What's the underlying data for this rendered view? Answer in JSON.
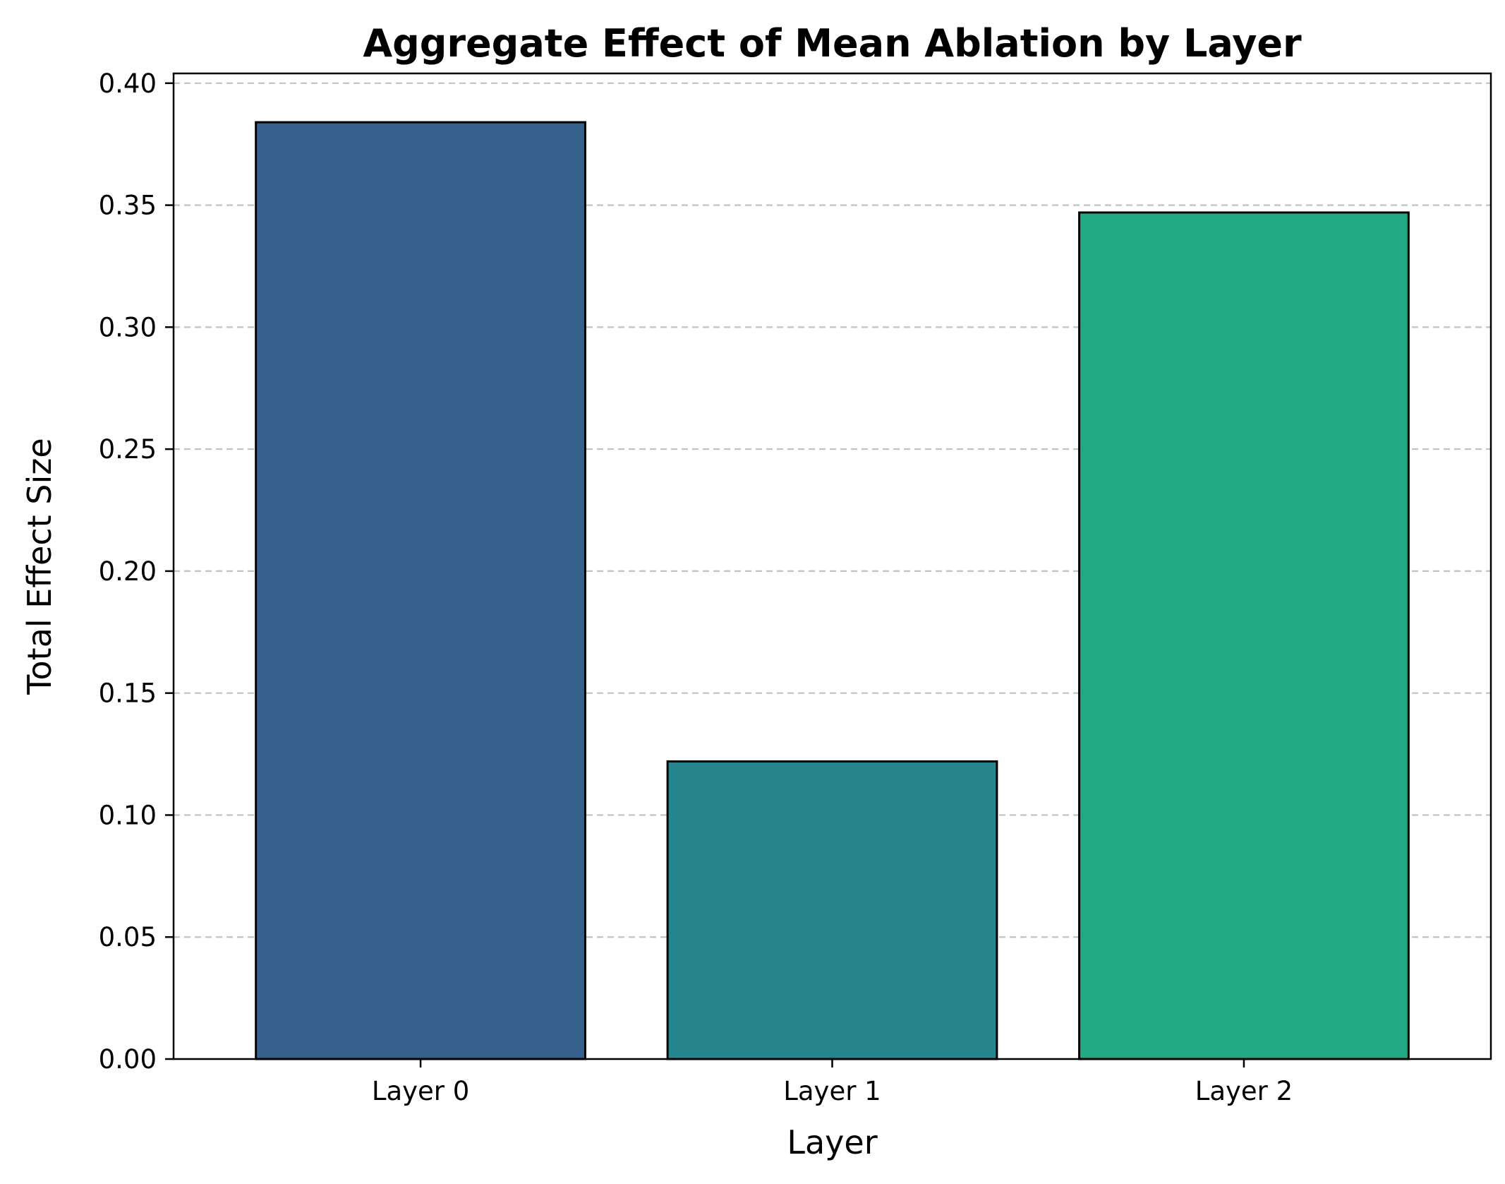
{
  "chart_data": {
    "type": "bar",
    "title": "Aggregate Effect of Mean Ablation by Layer",
    "xlabel": "Layer",
    "ylabel": "Total Effect Size",
    "categories": [
      "Layer 0",
      "Layer 1",
      "Layer 2"
    ],
    "values": [
      0.384,
      0.122,
      0.347
    ],
    "colors": [
      "#36618c",
      "#27858e",
      "#23a884"
    ],
    "edge_color": "#000000",
    "ylim": [
      0,
      0.404
    ],
    "yticks": [
      0.0,
      0.05,
      0.1,
      0.15,
      0.2,
      0.25,
      0.3,
      0.35,
      0.4
    ],
    "ytick_labels": [
      "0.00",
      "0.05",
      "0.10",
      "0.15",
      "0.20",
      "0.25",
      "0.30",
      "0.35",
      "0.40"
    ],
    "grid": "horizontal dashed",
    "grid_color": "#c2c2c2"
  }
}
